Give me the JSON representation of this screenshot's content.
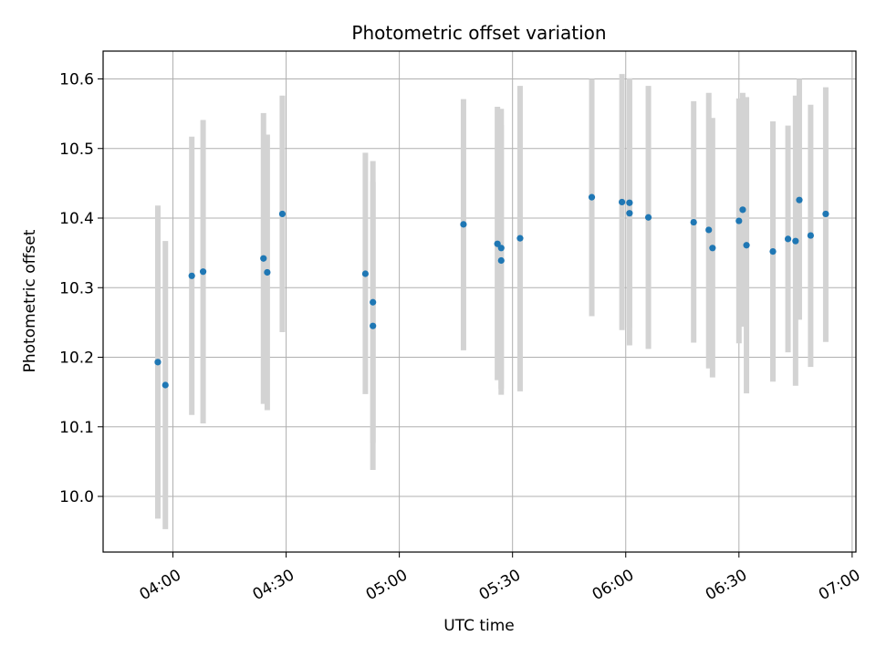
{
  "chart_data": {
    "type": "scatter",
    "title": "Photometric offset variation",
    "xlabel": "UTC time",
    "ylabel": "Photometric offset",
    "x_is_time": true,
    "xlim": [
      "03:50",
      "07:00"
    ],
    "ylim": [
      9.92,
      10.64
    ],
    "xticks": [
      "04:00",
      "04:30",
      "05:00",
      "05:30",
      "06:00",
      "06:30",
      "07:00"
    ],
    "yticks": [
      10.0,
      10.1,
      10.2,
      10.3,
      10.4,
      10.5,
      10.6
    ],
    "ytick_labels": [
      "10.0",
      "10.1",
      "10.2",
      "10.3",
      "10.4",
      "10.5",
      "10.6"
    ],
    "grid": true,
    "colors": {
      "point": "#1f77b4",
      "errorbar": "#d3d3d3",
      "grid": "#b0b0b0"
    },
    "points": [
      {
        "x": "03:56",
        "y": 10.193,
        "ylow": 9.968,
        "yhigh": 10.418
      },
      {
        "x": "03:58",
        "y": 10.16,
        "ylow": 9.953,
        "yhigh": 10.367
      },
      {
        "x": "04:05",
        "y": 10.317,
        "ylow": 10.117,
        "yhigh": 10.517
      },
      {
        "x": "04:08",
        "y": 10.323,
        "ylow": 10.105,
        "yhigh": 10.541
      },
      {
        "x": "04:24",
        "y": 10.342,
        "ylow": 10.133,
        "yhigh": 10.551
      },
      {
        "x": "04:25",
        "y": 10.322,
        "ylow": 10.124,
        "yhigh": 10.52
      },
      {
        "x": "04:29",
        "y": 10.406,
        "ylow": 10.236,
        "yhigh": 10.576
      },
      {
        "x": "04:51",
        "y": 10.32,
        "ylow": 10.147,
        "yhigh": 10.494
      },
      {
        "x": "04:53",
        "y": 10.279,
        "ylow": 10.077,
        "yhigh": 10.482
      },
      {
        "x": "04:53",
        "y": 10.245,
        "ylow": 10.038,
        "yhigh": 10.452
      },
      {
        "x": "05:17",
        "y": 10.391,
        "ylow": 10.21,
        "yhigh": 10.571
      },
      {
        "x": "05:26",
        "y": 10.363,
        "ylow": 10.167,
        "yhigh": 10.56
      },
      {
        "x": "05:27",
        "y": 10.357,
        "ylow": 10.155,
        "yhigh": 10.557
      },
      {
        "x": "05:27",
        "y": 10.339,
        "ylow": 10.146,
        "yhigh": 10.534
      },
      {
        "x": "05:32",
        "y": 10.371,
        "ylow": 10.151,
        "yhigh": 10.59
      },
      {
        "x": "05:51",
        "y": 10.43,
        "ylow": 10.259,
        "yhigh": 10.6
      },
      {
        "x": "05:59",
        "y": 10.423,
        "ylow": 10.239,
        "yhigh": 10.607
      },
      {
        "x": "06:01",
        "y": 10.407,
        "ylow": 10.217,
        "yhigh": 10.597
      },
      {
        "x": "06:01",
        "y": 10.422,
        "ylow": 10.243,
        "yhigh": 10.601
      },
      {
        "x": "06:06",
        "y": 10.401,
        "ylow": 10.212,
        "yhigh": 10.59
      },
      {
        "x": "06:18",
        "y": 10.394,
        "ylow": 10.221,
        "yhigh": 10.568
      },
      {
        "x": "06:22",
        "y": 10.383,
        "ylow": 10.184,
        "yhigh": 10.58
      },
      {
        "x": "06:23",
        "y": 10.357,
        "ylow": 10.171,
        "yhigh": 10.544
      },
      {
        "x": "06:30",
        "y": 10.396,
        "ylow": 10.22,
        "yhigh": 10.572
      },
      {
        "x": "06:31",
        "y": 10.412,
        "ylow": 10.244,
        "yhigh": 10.58
      },
      {
        "x": "06:32",
        "y": 10.361,
        "ylow": 10.148,
        "yhigh": 10.574
      },
      {
        "x": "06:39",
        "y": 10.352,
        "ylow": 10.165,
        "yhigh": 10.539
      },
      {
        "x": "06:43",
        "y": 10.37,
        "ylow": 10.207,
        "yhigh": 10.533
      },
      {
        "x": "06:45",
        "y": 10.367,
        "ylow": 10.159,
        "yhigh": 10.576
      },
      {
        "x": "06:46",
        "y": 10.426,
        "ylow": 10.254,
        "yhigh": 10.6
      },
      {
        "x": "06:49",
        "y": 10.375,
        "ylow": 10.186,
        "yhigh": 10.563
      },
      {
        "x": "06:53",
        "y": 10.406,
        "ylow": 10.222,
        "yhigh": 10.588
      }
    ]
  }
}
